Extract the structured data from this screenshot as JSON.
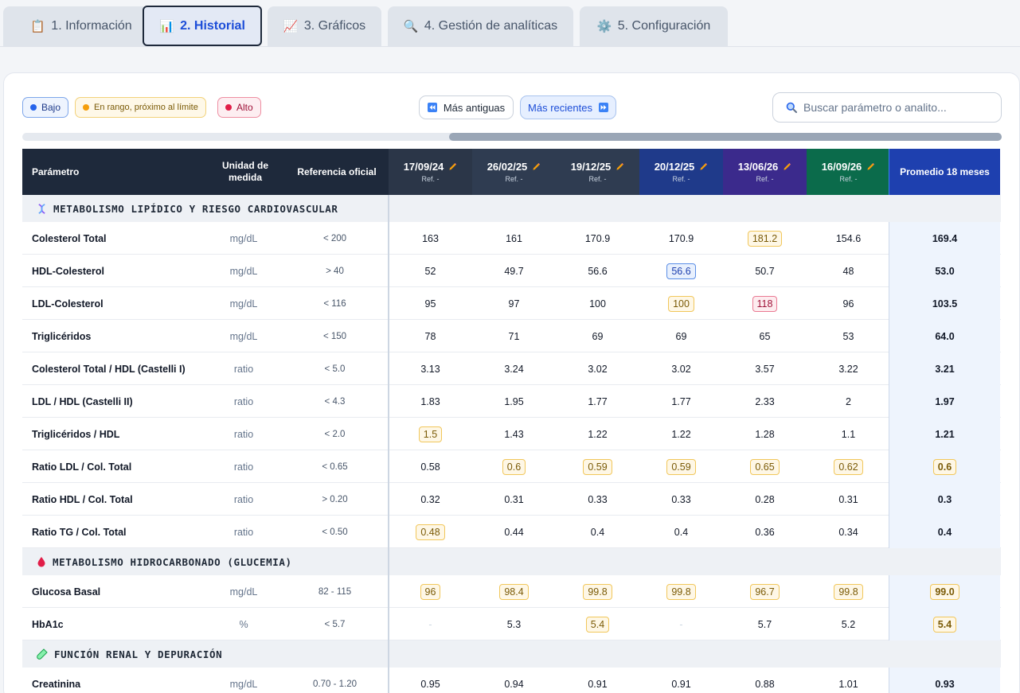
{
  "tabs": [
    {
      "label": "1. Información",
      "icon": "📋"
    },
    {
      "label": "2. Historial",
      "icon": "📊"
    },
    {
      "label": "3. Gráficos",
      "icon": "📈"
    },
    {
      "label": "4. Gestión de analíticas",
      "icon": "🔍"
    },
    {
      "label": "5. Configuración",
      "icon": "⚙️"
    }
  ],
  "legend": {
    "low": {
      "label": "Bajo",
      "color": "#2563eb"
    },
    "near": {
      "label": "En rango, próximo al límite",
      "color": "#f59e0b"
    },
    "high": {
      "label": "Alto",
      "color": "#e11d48"
    }
  },
  "nav": {
    "older": "Más antiguas",
    "newer": "Más recientes"
  },
  "search": {
    "placeholder": "Buscar parámetro o analito..."
  },
  "header": {
    "param": "Parámetro",
    "unit": "Unidad de medida",
    "ref": "Referencia oficial",
    "avg": "Promedio 18 meses",
    "ref_label": "Ref. -",
    "dates": [
      "17/09/24",
      "26/02/25",
      "19/12/25",
      "20/12/25",
      "13/06/26",
      "16/09/26"
    ],
    "date_colors": [
      "#2b3648",
      "#2f3c51",
      "#2f3c51",
      "#1f3a8a",
      "#3b2a8c",
      "#0b6b4b"
    ]
  },
  "sections": [
    {
      "title": "METABOLISMO LIPÍDICO Y RIESGO CARDIOVASCULAR",
      "icon": "dna-icon",
      "rows": [
        {
          "name": "Colesterol Total",
          "unit": "mg/dL",
          "ref": "< 200",
          "values": [
            "163",
            "161",
            "170.9",
            "170.9",
            "181.2",
            "154.6"
          ],
          "status": [
            "",
            "",
            "",
            "",
            "warn",
            ""
          ],
          "avg": "169.4",
          "avg_status": ""
        },
        {
          "name": "HDL-Colesterol",
          "unit": "mg/dL",
          "ref": "> 40",
          "values": [
            "52",
            "49.7",
            "56.6",
            "56.6",
            "50.7",
            "48"
          ],
          "status": [
            "",
            "",
            "",
            "low",
            "",
            ""
          ],
          "avg": "53.0",
          "avg_status": ""
        },
        {
          "name": "LDL-Colesterol",
          "unit": "mg/dL",
          "ref": "< 116",
          "values": [
            "95",
            "97",
            "100",
            "100",
            "118",
            "96"
          ],
          "status": [
            "",
            "",
            "",
            "warn",
            "high",
            ""
          ],
          "avg": "103.5",
          "avg_status": ""
        },
        {
          "name": "Triglicéridos",
          "unit": "mg/dL",
          "ref": "< 150",
          "values": [
            "78",
            "71",
            "69",
            "69",
            "65",
            "53"
          ],
          "status": [
            "",
            "",
            "",
            "",
            "",
            ""
          ],
          "avg": "64.0",
          "avg_status": ""
        },
        {
          "name": "Colesterol Total / HDL (Castelli I)",
          "unit": "ratio",
          "ref": "< 5.0",
          "values": [
            "3.13",
            "3.24",
            "3.02",
            "3.02",
            "3.57",
            "3.22"
          ],
          "status": [
            "",
            "",
            "",
            "",
            "",
            ""
          ],
          "avg": "3.21",
          "avg_status": ""
        },
        {
          "name": "LDL / HDL (Castelli II)",
          "unit": "ratio",
          "ref": "< 4.3",
          "values": [
            "1.83",
            "1.95",
            "1.77",
            "1.77",
            "2.33",
            "2"
          ],
          "status": [
            "",
            "",
            "",
            "",
            "",
            ""
          ],
          "avg": "1.97",
          "avg_status": ""
        },
        {
          "name": "Triglicéridos / HDL",
          "unit": "ratio",
          "ref": "< 2.0",
          "values": [
            "1.5",
            "1.43",
            "1.22",
            "1.22",
            "1.28",
            "1.1"
          ],
          "status": [
            "warn",
            "",
            "",
            "",
            "",
            ""
          ],
          "avg": "1.21",
          "avg_status": ""
        },
        {
          "name": "Ratio LDL / Col. Total",
          "unit": "ratio",
          "ref": "< 0.65",
          "values": [
            "0.58",
            "0.6",
            "0.59",
            "0.59",
            "0.65",
            "0.62"
          ],
          "status": [
            "",
            "warn",
            "warn",
            "warn",
            "warn",
            "warn"
          ],
          "avg": "0.6",
          "avg_status": "warn"
        },
        {
          "name": "Ratio HDL / Col. Total",
          "unit": "ratio",
          "ref": "> 0.20",
          "values": [
            "0.32",
            "0.31",
            "0.33",
            "0.33",
            "0.28",
            "0.31"
          ],
          "status": [
            "",
            "",
            "",
            "",
            "",
            ""
          ],
          "avg": "0.3",
          "avg_status": ""
        },
        {
          "name": "Ratio TG / Col. Total",
          "unit": "ratio",
          "ref": "< 0.50",
          "values": [
            "0.48",
            "0.44",
            "0.4",
            "0.4",
            "0.36",
            "0.34"
          ],
          "status": [
            "warn",
            "",
            "",
            "",
            "",
            ""
          ],
          "avg": "0.4",
          "avg_status": ""
        }
      ]
    },
    {
      "title": "METABOLISMO HIDROCARBONADO (GLUCEMIA)",
      "icon": "drop-icon",
      "rows": [
        {
          "name": "Glucosa Basal",
          "unit": "mg/dL",
          "ref": "82 - 115",
          "values": [
            "96",
            "98.4",
            "99.8",
            "99.8",
            "96.7",
            "99.8"
          ],
          "status": [
            "warn",
            "warn",
            "warn",
            "warn",
            "warn",
            "warn"
          ],
          "avg": "99.0",
          "avg_status": "warn"
        },
        {
          "name": "HbA1c",
          "unit": "%",
          "ref": "< 5.7",
          "values": [
            "-",
            "5.3",
            "5.4",
            "-",
            "5.7",
            "5.2"
          ],
          "status": [
            "dash",
            "",
            "warn",
            "dash",
            "",
            ""
          ],
          "avg": "5.4",
          "avg_status": "warn"
        }
      ]
    },
    {
      "title": "FUNCIÓN RENAL Y DEPURACIÓN",
      "icon": "test-tube-icon",
      "rows": [
        {
          "name": "Creatinina",
          "unit": "mg/dL",
          "ref": "0.70 - 1.20",
          "values": [
            "0.95",
            "0.94",
            "0.91",
            "0.91",
            "0.88",
            "1.01"
          ],
          "status": [
            "",
            "",
            "",
            "",
            "",
            ""
          ],
          "avg": "0.93",
          "avg_status": ""
        }
      ]
    }
  ]
}
